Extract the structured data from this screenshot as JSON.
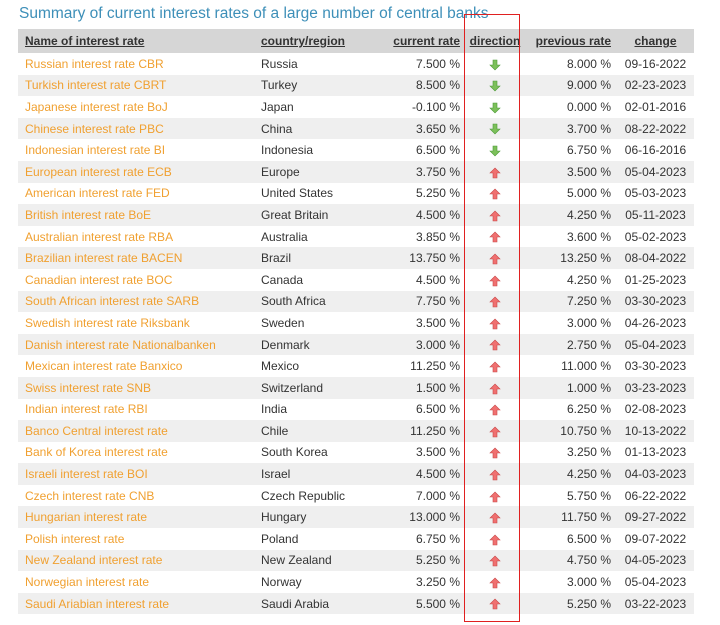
{
  "title": "Summary of current interest rates of a large number of central banks",
  "columns": {
    "name": "Name of interest rate",
    "country": "country/region",
    "current": "current rate",
    "direction": "direction",
    "previous": "previous rate",
    "change": "change"
  },
  "colors": {
    "up": "#f07070",
    "down": "#7cc05a",
    "link": "#f0a030",
    "title": "#3d8fb8",
    "highlight": "#e02020"
  },
  "rows": [
    {
      "name": "Russian interest rate CBR",
      "country": "Russia",
      "current": "7.500 %",
      "direction": "down-arrow-icon",
      "previous": "8.000 %",
      "change": "09-16-2022"
    },
    {
      "name": "Turkish interest rate CBRT",
      "country": "Turkey",
      "current": "8.500 %",
      "direction": "down-arrow-icon",
      "previous": "9.000 %",
      "change": "02-23-2023"
    },
    {
      "name": "Japanese interest rate BoJ",
      "country": "Japan",
      "current": "-0.100 %",
      "direction": "down-arrow-icon",
      "previous": "0.000 %",
      "change": "02-01-2016"
    },
    {
      "name": "Chinese interest rate PBC",
      "country": "China",
      "current": "3.650 %",
      "direction": "down-arrow-icon",
      "previous": "3.700 %",
      "change": "08-22-2022"
    },
    {
      "name": "Indonesian interest rate BI",
      "country": "Indonesia",
      "current": "6.500 %",
      "direction": "down-arrow-icon",
      "previous": "6.750 %",
      "change": "06-16-2016"
    },
    {
      "name": "European interest rate ECB",
      "country": "Europe",
      "current": "3.750 %",
      "direction": "up-arrow-icon",
      "previous": "3.500 %",
      "change": "05-04-2023"
    },
    {
      "name": "American interest rate FED",
      "country": "United States",
      "current": "5.250 %",
      "direction": "up-arrow-icon",
      "previous": "5.000 %",
      "change": "05-03-2023"
    },
    {
      "name": "British interest rate BoE",
      "country": "Great Britain",
      "current": "4.500 %",
      "direction": "up-arrow-icon",
      "previous": "4.250 %",
      "change": "05-11-2023"
    },
    {
      "name": "Australian interest rate RBA",
      "country": "Australia",
      "current": "3.850 %",
      "direction": "up-arrow-icon",
      "previous": "3.600 %",
      "change": "05-02-2023"
    },
    {
      "name": "Brazilian interest rate BACEN",
      "country": "Brazil",
      "current": "13.750 %",
      "direction": "up-arrow-icon",
      "previous": "13.250 %",
      "change": "08-04-2022"
    },
    {
      "name": "Canadian interest rate BOC",
      "country": "Canada",
      "current": "4.500 %",
      "direction": "up-arrow-icon",
      "previous": "4.250 %",
      "change": "01-25-2023"
    },
    {
      "name": "South African interest rate SARB",
      "country": "South Africa",
      "current": "7.750 %",
      "direction": "up-arrow-icon",
      "previous": "7.250 %",
      "change": "03-30-2023"
    },
    {
      "name": "Swedish interest rate Riksbank",
      "country": "Sweden",
      "current": "3.500 %",
      "direction": "up-arrow-icon",
      "previous": "3.000 %",
      "change": "04-26-2023"
    },
    {
      "name": "Danish interest rate Nationalbanken",
      "country": "Denmark",
      "current": "3.000 %",
      "direction": "up-arrow-icon",
      "previous": "2.750 %",
      "change": "05-04-2023"
    },
    {
      "name": "Mexican interest rate Banxico",
      "country": "Mexico",
      "current": "11.250 %",
      "direction": "up-arrow-icon",
      "previous": "11.000 %",
      "change": "03-30-2023"
    },
    {
      "name": "Swiss interest rate SNB",
      "country": "Switzerland",
      "current": "1.500 %",
      "direction": "up-arrow-icon",
      "previous": "1.000 %",
      "change": "03-23-2023"
    },
    {
      "name": "Indian interest rate RBI",
      "country": "India",
      "current": "6.500 %",
      "direction": "up-arrow-icon",
      "previous": "6.250 %",
      "change": "02-08-2023"
    },
    {
      "name": "Banco Central interest rate",
      "country": "Chile",
      "current": "11.250 %",
      "direction": "up-arrow-icon",
      "previous": "10.750 %",
      "change": "10-13-2022"
    },
    {
      "name": "Bank of Korea interest rate",
      "country": "South Korea",
      "current": "3.500 %",
      "direction": "up-arrow-icon",
      "previous": "3.250 %",
      "change": "01-13-2023"
    },
    {
      "name": "Israeli interest rate BOI",
      "country": "Israel",
      "current": "4.500 %",
      "direction": "up-arrow-icon",
      "previous": "4.250 %",
      "change": "04-03-2023"
    },
    {
      "name": "Czech interest rate CNB",
      "country": "Czech Republic",
      "current": "7.000 %",
      "direction": "up-arrow-icon",
      "previous": "5.750 %",
      "change": "06-22-2022"
    },
    {
      "name": "Hungarian interest rate",
      "country": "Hungary",
      "current": "13.000 %",
      "direction": "up-arrow-icon",
      "previous": "11.750 %",
      "change": "09-27-2022"
    },
    {
      "name": "Polish interest rate",
      "country": "Poland",
      "current": "6.750 %",
      "direction": "up-arrow-icon",
      "previous": "6.500 %",
      "change": "09-07-2022"
    },
    {
      "name": "New Zealand interest rate",
      "country": "New Zealand",
      "current": "5.250 %",
      "direction": "up-arrow-icon",
      "previous": "4.750 %",
      "change": "04-05-2023"
    },
    {
      "name": "Norwegian interest rate",
      "country": "Norway",
      "current": "3.250 %",
      "direction": "up-arrow-icon",
      "previous": "3.000 %",
      "change": "05-04-2023"
    },
    {
      "name": "Saudi Ariabian interest rate",
      "country": "Saudi Arabia",
      "current": "5.500 %",
      "direction": "up-arrow-icon",
      "previous": "5.250 %",
      "change": "03-22-2023"
    }
  ]
}
